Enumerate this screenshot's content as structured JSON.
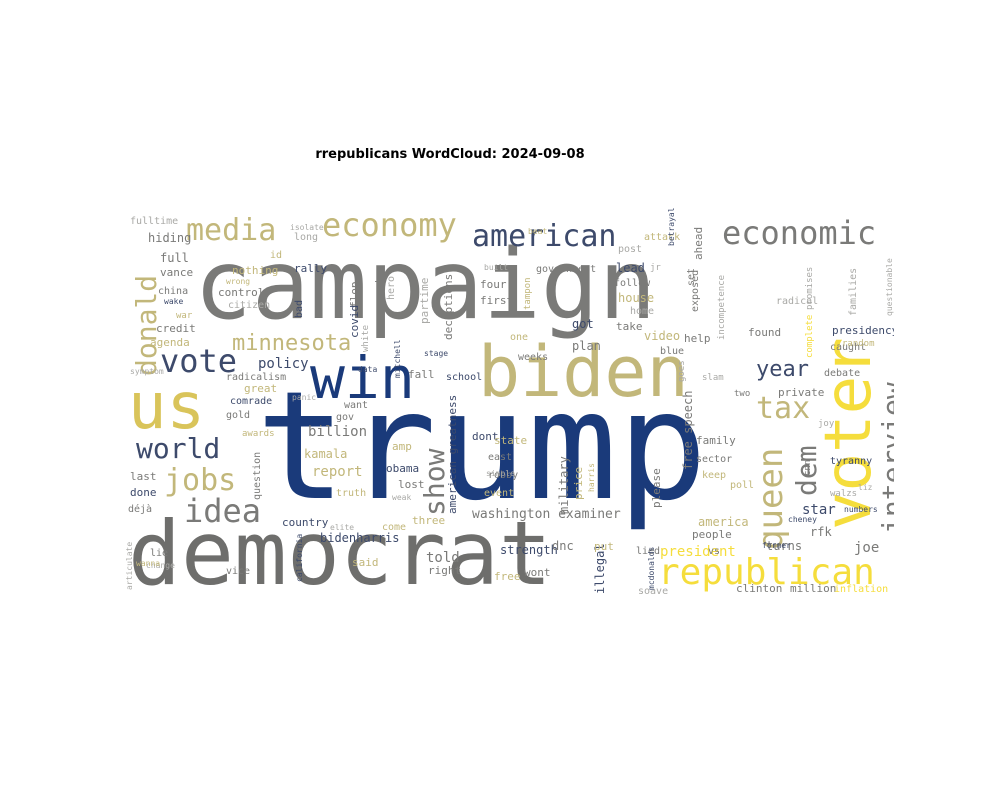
{
  "title": "rrepublicans WordCloud: 2024-09-08",
  "palette": {
    "navy": "#1a3a7a",
    "slate": "#3d4a6b",
    "gray": "#7a7a78",
    "darkgray": "#6e6e6c",
    "khaki": "#c2b77a",
    "gold": "#d9c45a",
    "yellow": "#f5dd3c",
    "lightgray": "#a9a9a6",
    "tan": "#b9b08a"
  },
  "words": [
    {
      "text": "trump",
      "color": "navy"
    },
    {
      "text": "campaign",
      "color": "gray"
    },
    {
      "text": "democrat",
      "color": "darkgray"
    },
    {
      "text": "biden",
      "color": "khaki"
    },
    {
      "text": "voter",
      "color": "yellow"
    },
    {
      "text": "us",
      "color": "gold"
    },
    {
      "text": "win",
      "color": "navy"
    },
    {
      "text": "republican",
      "color": "yellow"
    },
    {
      "text": "economy",
      "color": "khaki"
    },
    {
      "text": "american",
      "color": "slate"
    },
    {
      "text": "economic",
      "color": "gray"
    },
    {
      "text": "media",
      "color": "khaki"
    },
    {
      "text": "vote",
      "color": "slate"
    },
    {
      "text": "world",
      "color": "slate"
    },
    {
      "text": "jobs",
      "color": "khaki"
    },
    {
      "text": "idea",
      "color": "gray"
    },
    {
      "text": "show",
      "color": "gray"
    },
    {
      "text": "interview",
      "color": "gray"
    },
    {
      "text": "queen",
      "color": "khaki"
    },
    {
      "text": "donald",
      "color": "khaki"
    },
    {
      "text": "tax",
      "color": "khaki"
    },
    {
      "text": "dem",
      "color": "gray"
    },
    {
      "text": "minnesota",
      "color": "khaki"
    },
    {
      "text": "year",
      "color": "slate"
    },
    {
      "text": "washington examiner",
      "color": "gray"
    },
    {
      "text": "bidenharris",
      "color": "slate"
    },
    {
      "text": "free speech",
      "color": "gray"
    },
    {
      "text": "american greatness",
      "color": "slate"
    },
    {
      "text": "policy",
      "color": "slate"
    },
    {
      "text": "billion",
      "color": "gray"
    },
    {
      "text": "report",
      "color": "khaki"
    },
    {
      "text": "kamala",
      "color": "khaki"
    },
    {
      "text": "military",
      "color": "gray"
    },
    {
      "text": "president",
      "color": "yellow"
    },
    {
      "text": "america",
      "color": "khaki"
    },
    {
      "text": "star",
      "color": "slate"
    },
    {
      "text": "joe",
      "color": "gray"
    },
    {
      "text": "strength",
      "color": "slate"
    },
    {
      "text": "told",
      "color": "gray"
    },
    {
      "text": "dnc",
      "color": "gray"
    },
    {
      "text": "illegal",
      "color": "slate"
    },
    {
      "text": "rfk",
      "color": "gray"
    },
    {
      "text": "turns",
      "color": "gray"
    },
    {
      "text": "clinton",
      "color": "gray"
    },
    {
      "text": "million",
      "color": "gray"
    },
    {
      "text": "inflation",
      "color": "yellow"
    },
    {
      "text": "fulltime",
      "color": "lightgray"
    },
    {
      "text": "hiding",
      "color": "gray"
    },
    {
      "text": "full",
      "color": "gray"
    },
    {
      "text": "vance",
      "color": "gray"
    },
    {
      "text": "china",
      "color": "gray"
    },
    {
      "text": "credit",
      "color": "gray"
    },
    {
      "text": "agenda",
      "color": "khaki"
    },
    {
      "text": "nothing",
      "color": "khaki"
    },
    {
      "text": "control",
      "color": "gray"
    },
    {
      "text": "citizen",
      "color": "lightgray"
    },
    {
      "text": "rally",
      "color": "slate"
    },
    {
      "text": "long",
      "color": "lightgray"
    },
    {
      "text": "id",
      "color": "khaki"
    },
    {
      "text": "flop",
      "color": "gray"
    },
    {
      "text": "covid",
      "color": "slate"
    },
    {
      "text": "party",
      "color": "gray"
    },
    {
      "text": "hero",
      "color": "lightgray"
    },
    {
      "text": "partime",
      "color": "lightgray"
    },
    {
      "text": "deceptions",
      "color": "gray"
    },
    {
      "text": "government",
      "color": "gray"
    },
    {
      "text": "four",
      "color": "gray"
    },
    {
      "text": "first",
      "color": "gray"
    },
    {
      "text": "post",
      "color": "lightgray"
    },
    {
      "text": "lead",
      "color": "slate"
    },
    {
      "text": "follow",
      "color": "gray"
    },
    {
      "text": "house",
      "color": "khaki"
    },
    {
      "text": "home",
      "color": "lightgray"
    },
    {
      "text": "got",
      "color": "slate"
    },
    {
      "text": "take",
      "color": "gray"
    },
    {
      "text": "video",
      "color": "khaki"
    },
    {
      "text": "help",
      "color": "gray"
    },
    {
      "text": "blue",
      "color": "gray"
    },
    {
      "text": "exposed",
      "color": "gray"
    },
    {
      "text": "ahead",
      "color": "gray"
    },
    {
      "text": "attack",
      "color": "khaki"
    },
    {
      "text": "set",
      "color": "gray"
    },
    {
      "text": "incompetence",
      "color": "lightgray"
    },
    {
      "text": "promises",
      "color": "lightgray"
    },
    {
      "text": "radical",
      "color": "lightgray"
    },
    {
      "text": "found",
      "color": "gray"
    },
    {
      "text": "presidency",
      "color": "slate"
    },
    {
      "text": "caught",
      "color": "gray"
    },
    {
      "text": "random",
      "color": "khaki"
    },
    {
      "text": "families",
      "color": "lightgray"
    },
    {
      "text": "debate",
      "color": "gray"
    },
    {
      "text": "private",
      "color": "gray"
    },
    {
      "text": "two",
      "color": "gray"
    },
    {
      "text": "slam",
      "color": "lightgray"
    },
    {
      "text": "joy",
      "color": "lightgray"
    },
    {
      "text": "family",
      "color": "gray"
    },
    {
      "text": "sector",
      "color": "gray"
    },
    {
      "text": "tyranny",
      "color": "slate"
    },
    {
      "text": "keep",
      "color": "khaki"
    },
    {
      "text": "walzs",
      "color": "lightgray"
    },
    {
      "text": "people",
      "color": "gray"
    },
    {
      "text": "lied",
      "color": "gray"
    },
    {
      "text": "soave",
      "color": "lightgray"
    },
    {
      "text": "vs",
      "color": "gray"
    },
    {
      "text": "one",
      "color": "khaki"
    },
    {
      "text": "weeks",
      "color": "gray"
    },
    {
      "text": "plan",
      "color": "gray"
    },
    {
      "text": "school",
      "color": "slate"
    },
    {
      "text": "dont",
      "color": "slate"
    },
    {
      "text": "east",
      "color": "gray"
    },
    {
      "text": "state",
      "color": "khaki"
    },
    {
      "text": "robby",
      "color": "gray"
    },
    {
      "text": "event",
      "color": "khaki"
    },
    {
      "text": "please",
      "color": "gray"
    },
    {
      "text": "price",
      "color": "khaki"
    },
    {
      "text": "amp",
      "color": "khaki"
    },
    {
      "text": "obama",
      "color": "slate"
    },
    {
      "text": "lost",
      "color": "gray"
    },
    {
      "text": "fall",
      "color": "gray"
    },
    {
      "text": "truth",
      "color": "khaki"
    },
    {
      "text": "three",
      "color": "khaki"
    },
    {
      "text": "come",
      "color": "khaki"
    },
    {
      "text": "said",
      "color": "khaki"
    },
    {
      "text": "right",
      "color": "gray"
    },
    {
      "text": "wont",
      "color": "gray"
    },
    {
      "text": "free",
      "color": "khaki"
    },
    {
      "text": "put",
      "color": "khaki"
    },
    {
      "text": "radicalism",
      "color": "gray"
    },
    {
      "text": "great",
      "color": "khaki"
    },
    {
      "text": "comrade",
      "color": "slate"
    },
    {
      "text": "gold",
      "color": "gray"
    },
    {
      "text": "gov",
      "color": "gray"
    },
    {
      "text": "want",
      "color": "gray"
    },
    {
      "text": "white",
      "color": "lightgray"
    },
    {
      "text": "question",
      "color": "gray"
    },
    {
      "text": "country",
      "color": "slate"
    },
    {
      "text": "last",
      "color": "gray"
    },
    {
      "text": "done",
      "color": "slate"
    },
    {
      "text": "déjà",
      "color": "gray"
    },
    {
      "text": "lie",
      "color": "gray"
    },
    {
      "text": "vice",
      "color": "gray"
    },
    {
      "text": "bad",
      "color": "slate"
    },
    {
      "text": "cnn",
      "color": "gray"
    },
    {
      "text": "jr",
      "color": "lightgray"
    },
    {
      "text": "goes",
      "color": "lightgray"
    },
    {
      "text": "stage",
      "color": "slate"
    },
    {
      "text": "simple",
      "color": "lightgray"
    },
    {
      "text": "california",
      "color": "slate"
    },
    {
      "text": "elite",
      "color": "lightgray"
    },
    {
      "text": "weak",
      "color": "lightgray"
    },
    {
      "text": "numbers",
      "color": "slate"
    },
    {
      "text": "cheney",
      "color": "slate"
    },
    {
      "text": "former",
      "color": "slate"
    },
    {
      "text": "complete",
      "color": "yellow"
    },
    {
      "text": "poll",
      "color": "khaki"
    },
    {
      "text": "change",
      "color": "lightgray"
    },
    {
      "text": "articulate",
      "color": "lightgray"
    },
    {
      "text": "wanna",
      "color": "khaki"
    },
    {
      "text": "awards",
      "color": "khaki"
    },
    {
      "text": "wake",
      "color": "slate"
    },
    {
      "text": "war",
      "color": "khaki"
    },
    {
      "text": "mitchell",
      "color": "slate"
    },
    {
      "text": "tampon",
      "color": "khaki"
    },
    {
      "text": "betrayal",
      "color": "slate"
    },
    {
      "text": "built",
      "color": "lightgray"
    },
    {
      "text": "beat",
      "color": "khaki"
    },
    {
      "text": "isolate",
      "color": "lightgray"
    },
    {
      "text": "wrong",
      "color": "khaki"
    },
    {
      "text": "panic",
      "color": "lightgray"
    },
    {
      "text": "data",
      "color": "slate"
    },
    {
      "text": "symptom",
      "color": "lightgray"
    },
    {
      "text": "liz",
      "color": "lightgray"
    },
    {
      "text": "harris",
      "color": "khaki"
    },
    {
      "text": "questionable",
      "color": "lightgray"
    },
    {
      "text": "mcdonalds",
      "color": "slate"
    }
  ]
}
